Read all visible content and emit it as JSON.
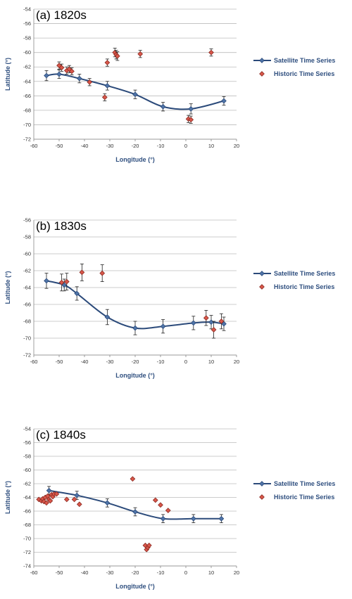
{
  "colors": {
    "satellite": "#2b4a7a",
    "historic": "#d9574a",
    "grid": "#bbbbbb",
    "axis_text": "#2f4f7f"
  },
  "chart_data": [
    {
      "type": "scatter",
      "label": "(a) 1820s",
      "xlabel": "Longitude (°)",
      "ylabel": "Latitude (°)",
      "xlim": [
        -60,
        20
      ],
      "ylim": [
        -72,
        -54
      ],
      "xticks": [
        -60,
        -50,
        -40,
        -30,
        -20,
        -10,
        0,
        10,
        20
      ],
      "yticks": [
        -54,
        -56,
        -58,
        -60,
        -62,
        -64,
        -66,
        -68,
        -70,
        -72
      ],
      "grid": true,
      "legend": "right",
      "series": [
        {
          "name": "Satellite Time Series",
          "style": "line-marker",
          "x": [
            -55,
            -50,
            -42,
            -31,
            -20,
            -9,
            2,
            15
          ],
          "y": [
            -63.2,
            -63.0,
            -63.6,
            -64.6,
            -65.8,
            -67.5,
            -67.8,
            -66.7
          ],
          "err": [
            0.7,
            0.6,
            0.6,
            0.6,
            0.6,
            0.6,
            0.7,
            0.6
          ]
        },
        {
          "name": "Historic Time Series",
          "style": "marker",
          "x": [
            -50,
            -49,
            -47,
            -46,
            -45,
            -38,
            -32,
            -31,
            -28,
            -27.5,
            -27,
            -18,
            1,
            2,
            10
          ],
          "y": [
            -61.8,
            -62.1,
            -62.5,
            -62.3,
            -62.6,
            -64.1,
            -66.2,
            -61.4,
            -60.0,
            -60.3,
            -60.5,
            -60.2,
            -69.2,
            -69.3,
            -60.0
          ],
          "err": [
            0.5,
            0.5,
            0.5,
            0.5,
            0.5,
            0.5,
            0.5,
            0.5,
            0.6,
            0.6,
            0.6,
            0.5,
            0.5,
            0.5,
            0.5
          ]
        }
      ]
    },
    {
      "type": "scatter",
      "label": "(b) 1830s",
      "xlabel": "Longitude (°)",
      "ylabel": "Latitude (°)",
      "xlim": [
        -60,
        20
      ],
      "ylim": [
        -72,
        -56
      ],
      "xticks": [
        -60,
        -50,
        -40,
        -30,
        -20,
        -10,
        0,
        10,
        20
      ],
      "yticks": [
        -56,
        -58,
        -60,
        -62,
        -64,
        -66,
        -68,
        -70,
        -72
      ],
      "grid": true,
      "legend": "right",
      "series": [
        {
          "name": "Satellite Time Series",
          "style": "line-marker",
          "x": [
            -55,
            -48,
            -43,
            -31,
            -20,
            -9,
            3,
            10,
            15
          ],
          "y": [
            -63.2,
            -63.7,
            -64.7,
            -67.5,
            -68.8,
            -68.6,
            -68.2,
            -68.1,
            -68.3
          ],
          "err": [
            0.9,
            0.7,
            0.8,
            0.9,
            0.8,
            0.8,
            0.8,
            0.8,
            0.8
          ]
        },
        {
          "name": "Historic Time Series",
          "style": "marker",
          "x": [
            -49,
            -47,
            -41,
            -33,
            8,
            11,
            14
          ],
          "y": [
            -63.4,
            -63.3,
            -62.2,
            -62.3,
            -67.6,
            -69.0,
            -68.0
          ],
          "err": [
            1.0,
            1.0,
            1.0,
            1.0,
            0.9,
            1.0,
            0.9
          ]
        }
      ]
    },
    {
      "type": "scatter",
      "label": "(c) 1840s",
      "xlabel": "Longitude (°)",
      "ylabel": "Latitude (°)",
      "xlim": [
        -60,
        20
      ],
      "ylim": [
        -74,
        -54
      ],
      "xticks": [
        -60,
        -50,
        -40,
        -30,
        -20,
        -10,
        0,
        10,
        20
      ],
      "yticks": [
        -54,
        -56,
        -58,
        -60,
        -62,
        -64,
        -66,
        -68,
        -70,
        -72,
        -74
      ],
      "grid": true,
      "legend": "right",
      "series": [
        {
          "name": "Satellite Time Series",
          "style": "line-marker",
          "x": [
            -54,
            -43,
            -31,
            -20,
            -9,
            3,
            14
          ],
          "y": [
            -63.0,
            -63.7,
            -64.8,
            -66.1,
            -67.1,
            -67.1,
            -67.1
          ],
          "err": [
            0.6,
            0.6,
            0.6,
            0.6,
            0.6,
            0.6,
            0.6
          ]
        },
        {
          "name": "Historic Time Series",
          "style": "marker",
          "x": [
            -58,
            -57,
            -56.5,
            -56,
            -55.5,
            -55,
            -54.5,
            -54,
            -53.5,
            -53,
            -52.5,
            -52,
            -51,
            -47,
            -44,
            -42,
            -21,
            -16,
            -15.5,
            -15,
            -14.5,
            -12,
            -10,
            -7
          ],
          "y": [
            -64.3,
            -64.5,
            -64.2,
            -64.6,
            -64.0,
            -64.8,
            -63.8,
            -64.3,
            -64.5,
            -63.6,
            -63.9,
            -63.5,
            -63.5,
            -64.3,
            -64.3,
            -65.0,
            -61.3,
            -71.0,
            -71.6,
            -71.3,
            -71.0,
            -64.4,
            -65.1,
            -65.9
          ],
          "err": []
        }
      ]
    }
  ]
}
